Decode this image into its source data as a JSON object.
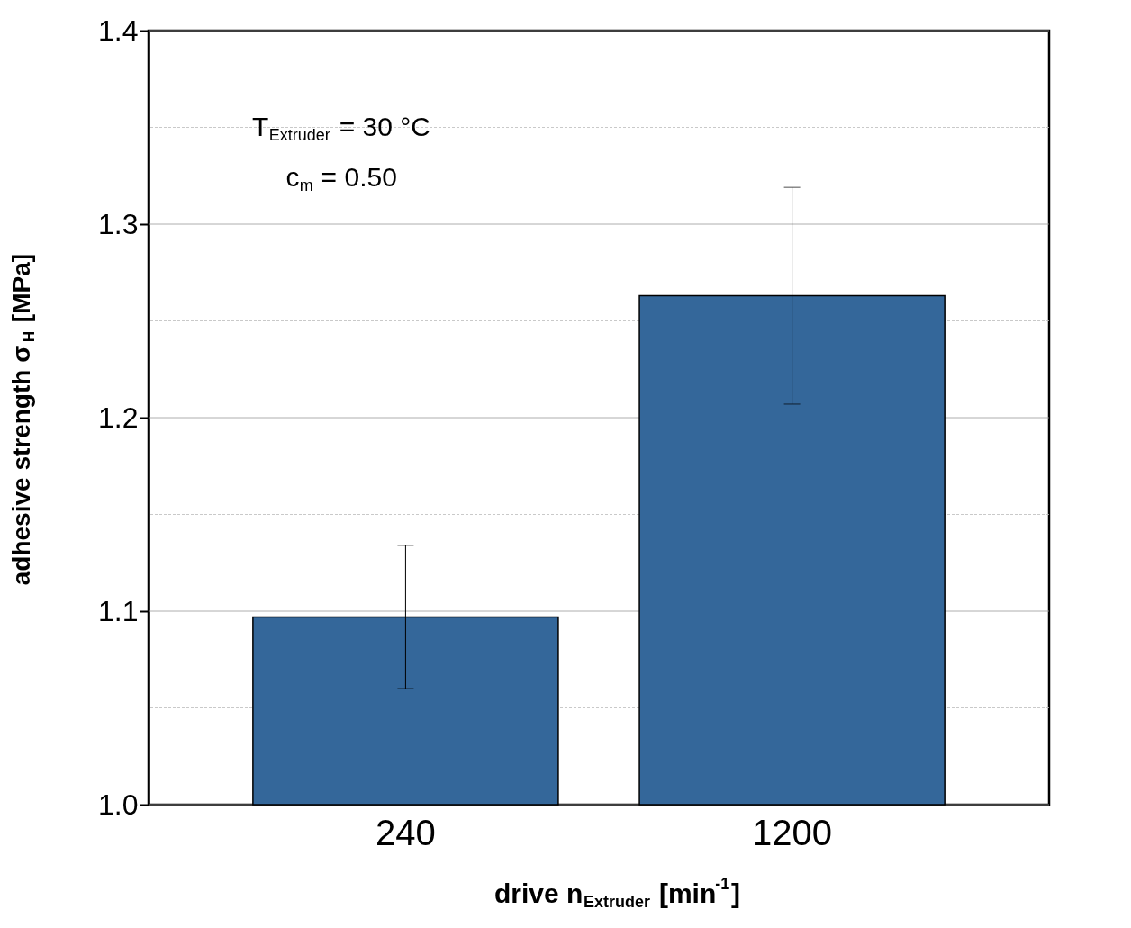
{
  "chart_data": {
    "type": "bar",
    "xlabel": "drive n$_{Extruder}$ [min$^{-1}$]",
    "ylabel": "adhesive strength σ$_{H}$ [MPa]",
    "categories": [
      "240",
      "1200"
    ],
    "values": [
      1.097,
      1.263
    ],
    "errors": [
      0.037,
      0.056
    ],
    "color": "#34679a",
    "ylim": [
      1.0,
      1.4
    ],
    "yticks": [
      {
        "value": 1.0,
        "label": "1.0"
      },
      {
        "value": 1.05,
        "label": null
      },
      {
        "value": 1.1,
        "label": "1.1"
      },
      {
        "value": 1.15,
        "label": null
      },
      {
        "value": 1.2,
        "label": "1.2"
      },
      {
        "value": 1.25,
        "label": null
      },
      {
        "value": 1.3,
        "label": "1.3"
      },
      {
        "value": 1.35,
        "label": null
      },
      {
        "value": 1.4,
        "label": "1.4"
      }
    ],
    "grid": "y",
    "annotations": [
      "T$_{Extruder}$ = 30 °C",
      "c$_{m}$ = 0.50"
    ]
  }
}
